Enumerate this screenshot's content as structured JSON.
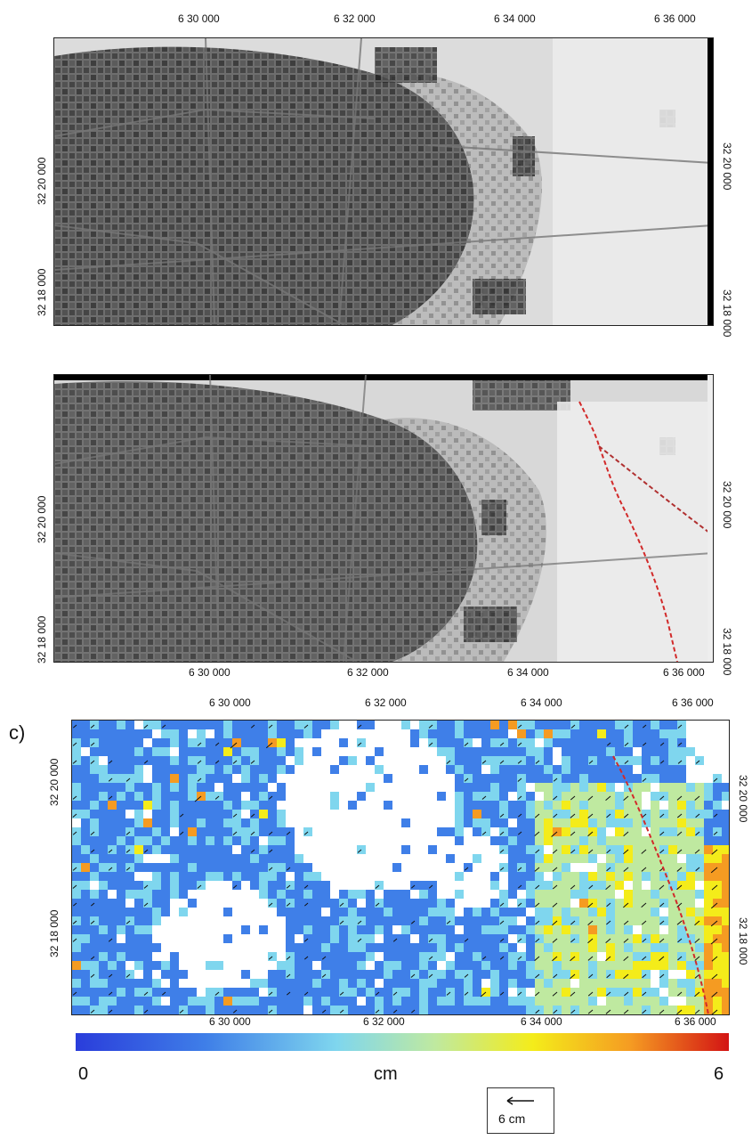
{
  "panels": [
    {
      "id": "a",
      "x_ticks_top": [
        "6 30 000",
        "6 32 000",
        "6 34 000",
        "6 36 000"
      ],
      "y_ticks_left": [
        "32 20 000",
        "32 18 000"
      ],
      "y_ticks_right": [
        "32 20 000",
        "32 18 000"
      ]
    },
    {
      "id": "b",
      "x_ticks_bottom": [
        "6 30 000",
        "6 32 000",
        "6 34 000",
        "6 36 000"
      ],
      "y_ticks_left": [
        "32 20 000",
        "32 18 000"
      ],
      "y_ticks_right": [
        "32 20 000",
        "32 18 000"
      ]
    },
    {
      "id": "c",
      "label": "c)",
      "x_ticks_top": [
        "6 30 000",
        "6 32 000",
        "6 34 000",
        "6 36 000"
      ],
      "x_ticks_bottom": [
        "6 30 000",
        "6 32 000",
        "6 34 000",
        "6 36 000"
      ],
      "y_ticks_left": [
        "32 20 000",
        "32 18 000"
      ],
      "y_ticks_right": [
        "32 20 000",
        "32 18 000"
      ]
    }
  ],
  "colorbar": {
    "min_label": "0",
    "unit_label": "cm",
    "max_label": "6",
    "min_value": 0,
    "max_value": 6,
    "colors": [
      "#2a3ddb",
      "#3f7fe8",
      "#7fd6ee",
      "#bfe9a0",
      "#f4ec1a",
      "#f59b22",
      "#d31414"
    ]
  },
  "vector_legend": {
    "text": "6 cm"
  },
  "fault_line_color": "#d22a2a"
}
